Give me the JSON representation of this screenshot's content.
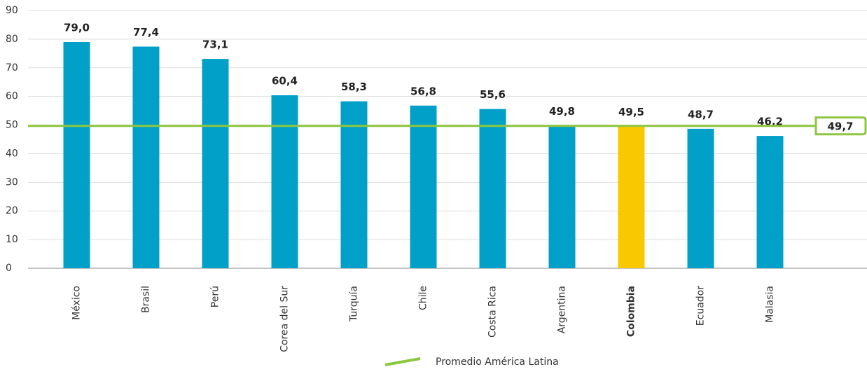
{
  "chart_data": {
    "type": "bar",
    "categories": [
      "México",
      "Brasil",
      "Perú",
      "Corea del Sur",
      "Turquía",
      "Chile",
      "Costa Rica",
      "Argentina",
      "Colombia",
      "Ecuador",
      "Malasia"
    ],
    "values": [
      79.0,
      77.4,
      73.1,
      60.4,
      58.3,
      56.8,
      55.6,
      49.8,
      49.5,
      48.7,
      46.2
    ],
    "value_labels": [
      "79,0",
      "77,4",
      "73,1",
      "60,4",
      "58,3",
      "56,8",
      "55,6",
      "49,8",
      "49,5",
      "48,7",
      "46,2"
    ],
    "color": "#00a0c8",
    "colors": [
      "#00a0c8",
      "#00a0c8",
      "#00a0c8",
      "#00a0c8",
      "#00a0c8",
      "#00a0c8",
      "#00a0c8",
      "#00a0c8",
      "#f9c800",
      "#00a0c8",
      "#00a0c8"
    ],
    "ylim": [
      0,
      90
    ],
    "yticks": [
      0,
      10,
      20,
      30,
      40,
      50,
      60,
      70,
      80,
      90
    ],
    "grid": true,
    "reference_line": {
      "name": "Promedio América Latina",
      "value": 49.7,
      "value_label": "49,7",
      "color": "#8dc63f"
    }
  }
}
